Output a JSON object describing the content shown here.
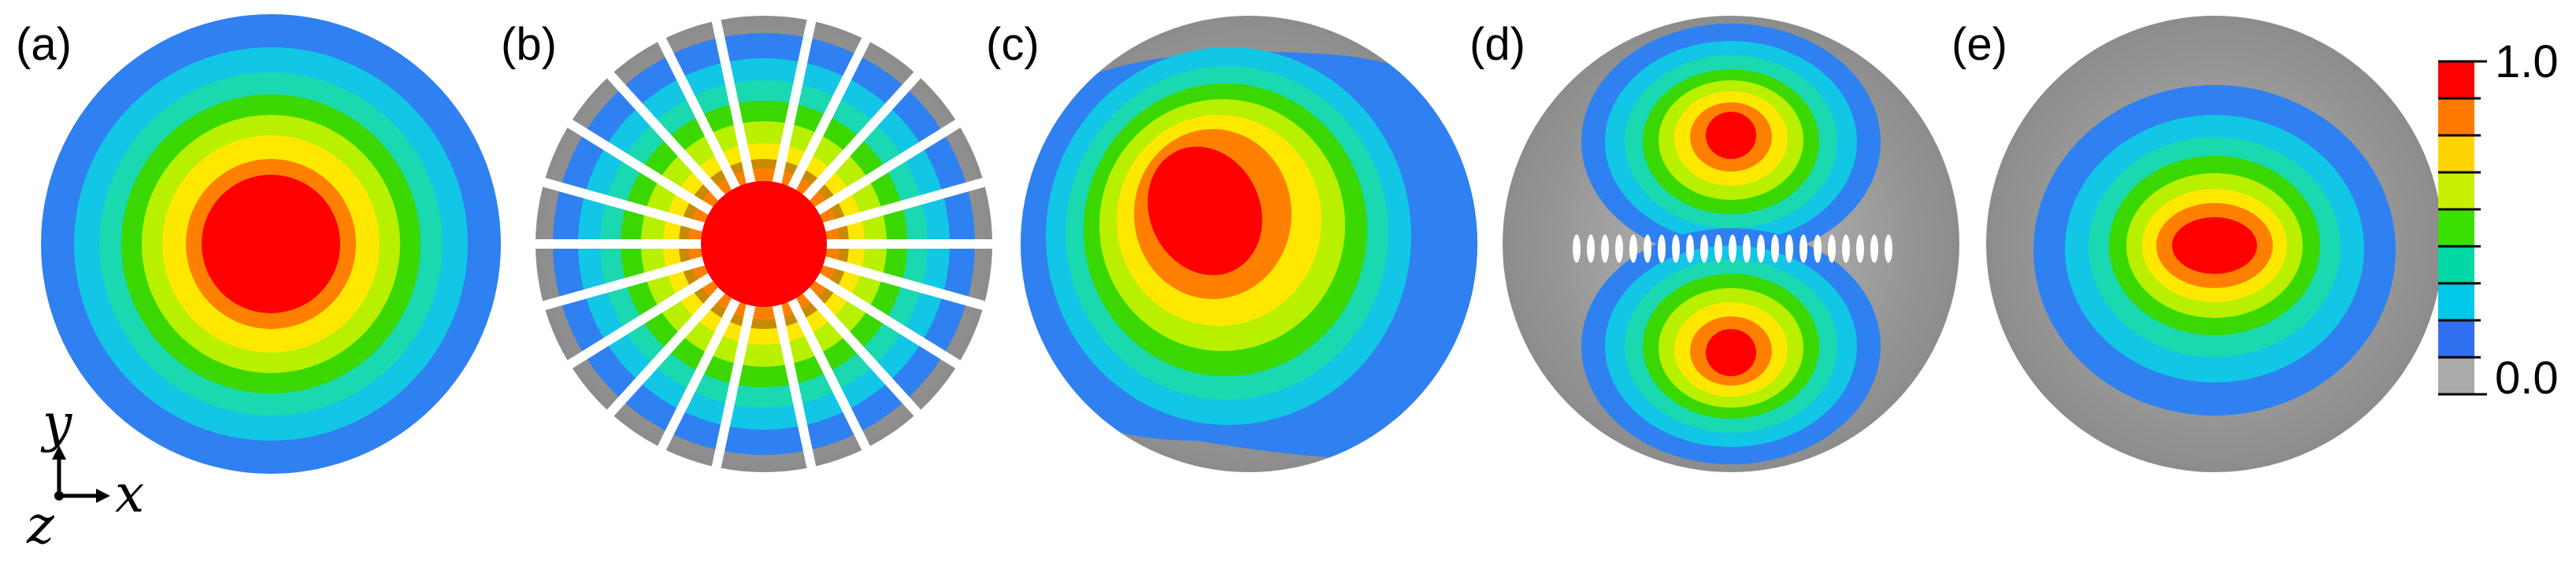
{
  "panels": [
    {
      "id": "a",
      "label": "(a)"
    },
    {
      "id": "b",
      "label": "(b)"
    },
    {
      "id": "c",
      "label": "(c)"
    },
    {
      "id": "d",
      "label": "(d)"
    },
    {
      "id": "e",
      "label": "(e)"
    }
  ],
  "colorbar": {
    "max_label": "1.0",
    "min_label": "0.0",
    "levels": [
      "#ff0000",
      "#ff7a00",
      "#ffd400",
      "#c8f000",
      "#3ae000",
      "#00d9a6",
      "#00c8e8",
      "#2f6ff0",
      "#aaaaaa"
    ]
  },
  "axes": {
    "x": "x",
    "y": "y",
    "z": "z"
  },
  "colors": {
    "background_disc": "#9a9a9a",
    "blue": "#2f80f0",
    "cyan": "#12c6e6",
    "teal": "#1ad8b0",
    "green": "#3ad800",
    "lime": "#b8f000",
    "yellow": "#ffe800",
    "orange": "#ff8000",
    "red": "#ff0000"
  }
}
